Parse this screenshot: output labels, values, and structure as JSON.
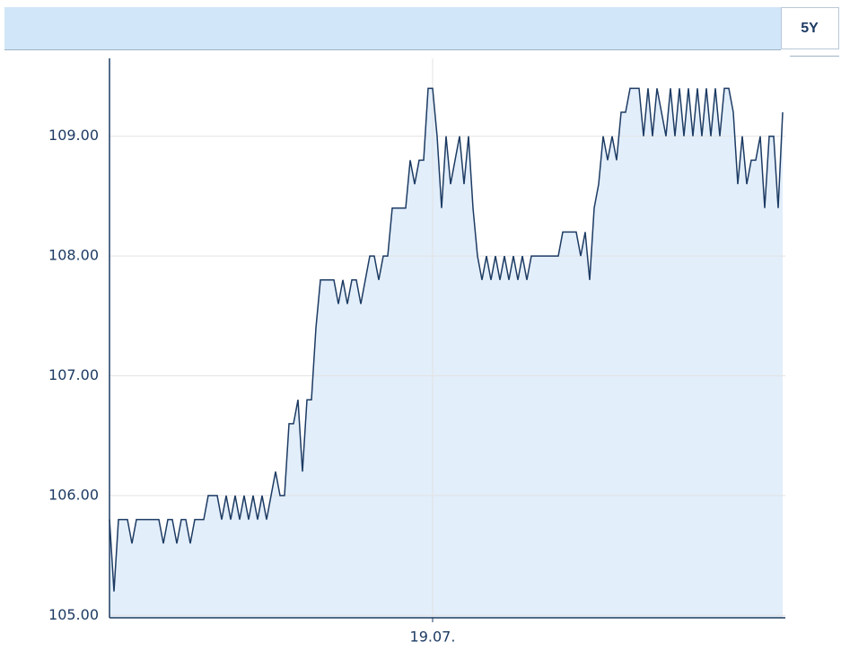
{
  "toolbar": {
    "range_button": "5Y"
  },
  "chart_data": {
    "type": "line",
    "categories": [
      null,
      null,
      null,
      null,
      null,
      null,
      null,
      null,
      null,
      null,
      null,
      null,
      null,
      null,
      null,
      null,
      null,
      null,
      null,
      null,
      null,
      null,
      null,
      null,
      null,
      null,
      null,
      null,
      null,
      null,
      null,
      null,
      null,
      null,
      null,
      null,
      null,
      null,
      null,
      null,
      null,
      null,
      null,
      null,
      null,
      null,
      null,
      null,
      null,
      null,
      null,
      null,
      null,
      null,
      null,
      null,
      null,
      null,
      null,
      null,
      null,
      null,
      null,
      null,
      null,
      null,
      null,
      null,
      null,
      null,
      null,
      null,
      "19.07.",
      null,
      null,
      null,
      null,
      null,
      null,
      null,
      null,
      null,
      null,
      null,
      null,
      null,
      null,
      null,
      null,
      null,
      null,
      null,
      null,
      null,
      null,
      null,
      null,
      null,
      null,
      null,
      null,
      null,
      null,
      null,
      null,
      null,
      null,
      null,
      null,
      null,
      null,
      null,
      null,
      null,
      null,
      null,
      null,
      null,
      null,
      null,
      null,
      null,
      null,
      null,
      null,
      null,
      null,
      null,
      null,
      null,
      null,
      null,
      null,
      null,
      null,
      null,
      null,
      null,
      null,
      null,
      null,
      null,
      null,
      null,
      null,
      null,
      null,
      null,
      null,
      null,
      null
    ],
    "values": [
      105.8,
      105.2,
      105.8,
      105.8,
      105.8,
      105.6,
      105.8,
      105.8,
      105.8,
      105.8,
      105.8,
      105.8,
      105.6,
      105.8,
      105.8,
      105.6,
      105.8,
      105.8,
      105.6,
      105.8,
      105.8,
      105.8,
      106,
      106,
      106,
      105.8,
      106,
      105.8,
      106,
      105.8,
      106,
      105.8,
      106,
      105.8,
      106,
      105.8,
      106,
      106.2,
      106,
      106,
      106.6,
      106.6,
      106.8,
      106.2,
      106.8,
      106.8,
      107.4,
      107.8,
      107.8,
      107.8,
      107.8,
      107.6,
      107.8,
      107.6,
      107.8,
      107.8,
      107.6,
      107.8,
      108,
      108,
      107.8,
      108,
      108,
      108.4,
      108.4,
      108.4,
      108.4,
      108.8,
      108.6,
      108.8,
      108.8,
      109.4,
      109.4,
      109,
      108.4,
      109,
      108.6,
      108.8,
      109,
      108.6,
      109,
      108.4,
      108,
      107.8,
      108,
      107.8,
      108,
      107.8,
      108,
      107.8,
      108,
      107.8,
      108,
      107.8,
      108,
      108,
      108,
      108,
      108,
      108,
      108,
      108.2,
      108.2,
      108.2,
      108.2,
      108,
      108.2,
      107.8,
      108.4,
      108.6,
      109,
      108.8,
      109,
      108.8,
      109.2,
      109.2,
      109.4,
      109.4,
      109.4,
      109,
      109.4,
      109,
      109.4,
      109.2,
      109,
      109.4,
      109,
      109.4,
      109,
      109.4,
      109,
      109.4,
      109,
      109.4,
      109,
      109.4,
      109,
      109.4,
      109.4,
      109.2,
      108.6,
      109,
      108.6,
      108.8,
      108.8,
      109,
      108.4,
      109,
      109,
      108.4,
      109.2
    ],
    "color": "#1d3b63",
    "fill_color": "#e2eefa",
    "ylim": [
      104.98,
      109.65
    ],
    "yticks": [
      {
        "value": 105,
        "label": "105.00"
      },
      {
        "value": 106,
        "label": "106.00"
      },
      {
        "value": 107,
        "label": "107.00"
      },
      {
        "value": 108,
        "label": "108.00"
      },
      {
        "value": 109,
        "label": "109.00"
      }
    ],
    "grid": true
  }
}
